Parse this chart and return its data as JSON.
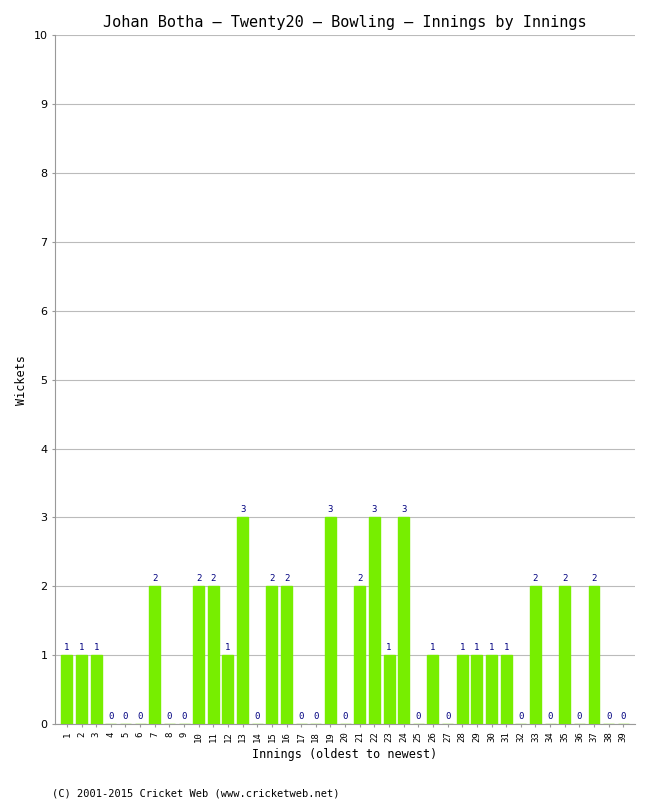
{
  "title": "Johan Botha – Twenty20 – Bowling – Innings by Innings",
  "xlabel": "Innings (oldest to newest)",
  "ylabel": "Wickets",
  "bar_color": "#77ee00",
  "label_color": "#000080",
  "background_color": "#ffffff",
  "grid_color": "#bbbbbb",
  "footer": "(C) 2001-2015 Cricket Web (www.cricketweb.net)",
  "ylim": [
    0,
    10
  ],
  "yticks": [
    0,
    1,
    2,
    3,
    4,
    5,
    6,
    7,
    8,
    9,
    10
  ],
  "innings": [
    1,
    2,
    3,
    4,
    5,
    6,
    7,
    8,
    9,
    10,
    11,
    12,
    13,
    14,
    15,
    16,
    17,
    18,
    19,
    20,
    21,
    22,
    23,
    24,
    25,
    26,
    27,
    28,
    29,
    30,
    31,
    32,
    33,
    34,
    35,
    36,
    37,
    38,
    39
  ],
  "wickets": [
    1,
    1,
    1,
    0,
    0,
    0,
    2,
    0,
    0,
    2,
    2,
    1,
    3,
    0,
    2,
    2,
    0,
    0,
    3,
    0,
    2,
    3,
    1,
    3,
    0,
    1,
    0,
    1,
    1,
    1,
    1,
    0,
    2,
    0,
    2,
    0,
    2,
    0,
    0
  ]
}
